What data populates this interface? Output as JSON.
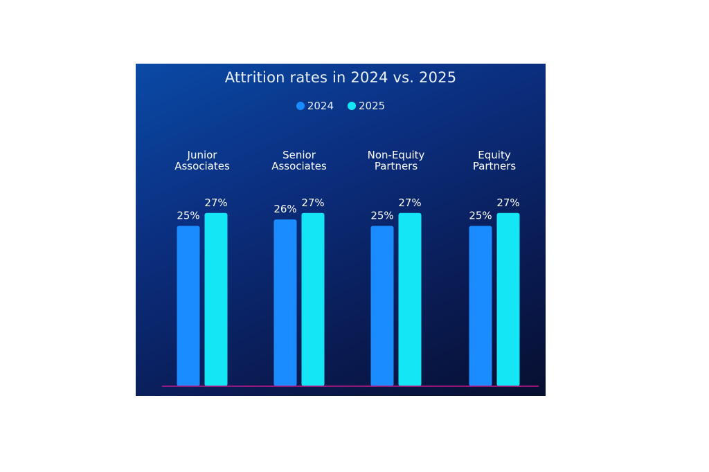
{
  "chart_data": {
    "type": "bar",
    "title": "Attrition rates in 2024 vs. 2025",
    "categories": [
      "Junior Associates",
      "Senior Associates",
      "Non-Equity Partners",
      "Equity Partners"
    ],
    "category_lines": [
      [
        "Junior",
        "Associates"
      ],
      [
        "Senior",
        "Associates"
      ],
      [
        "Non-Equity",
        "Partners"
      ],
      [
        "Equity",
        "Partners"
      ]
    ],
    "series": [
      {
        "name": "2024",
        "color": "#1a8cff",
        "values": [
          25,
          26,
          25,
          25
        ],
        "labels": [
          "25%",
          "26%",
          "25%",
          "25%"
        ]
      },
      {
        "name": "2025",
        "color": "#15e6f5",
        "values": [
          27,
          27,
          27,
          27
        ],
        "labels": [
          "27%",
          "27%",
          "27%",
          "27%"
        ]
      }
    ],
    "ylim": [
      0,
      30
    ],
    "legend_position": "top-center",
    "category_label_position": "top",
    "grid": false,
    "baseline_color": "#c0188c"
  }
}
